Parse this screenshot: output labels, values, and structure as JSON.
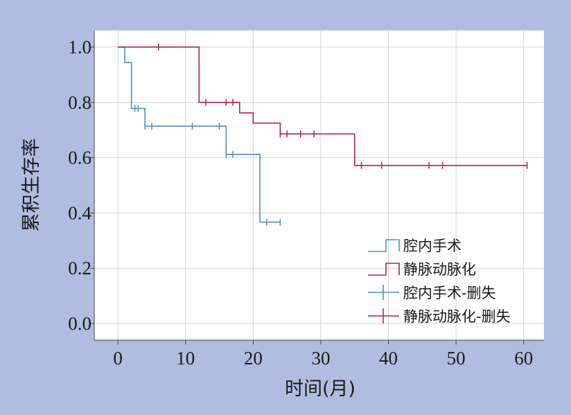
{
  "chart_data": {
    "type": "line",
    "subtype": "kaplan-meier",
    "xlabel": "时间(月)",
    "ylabel": "累积生存率",
    "xlim": [
      -3.5,
      63
    ],
    "ylim": [
      -0.06,
      1.06
    ],
    "xticks": [
      0,
      10,
      20,
      30,
      40,
      50,
      60
    ],
    "yticks": [
      0.0,
      0.2,
      0.4,
      0.6,
      0.8,
      1.0
    ],
    "ytick_labels": [
      "0.0",
      "0.2",
      "0.4",
      "0.6",
      "0.8",
      "1.0"
    ],
    "grid": true,
    "legend_position": "bottom-right",
    "legend": [
      "腔内手术",
      "静脉动脉化",
      "腔内手术-删失",
      "静脉动脉化-删失"
    ],
    "colors": {
      "series1": "#4f8fc0",
      "series2": "#b2204f",
      "background": "#b1bde0",
      "plot_bg": "#ffffff",
      "grid": "#d4d4d4"
    },
    "series": [
      {
        "name": "腔内手术",
        "censor_name": "腔内手术-删失",
        "color": "#4f8fc0",
        "steps": [
          [
            0,
            1.0
          ],
          [
            1,
            0.944
          ],
          [
            2,
            0.778
          ],
          [
            4,
            0.714
          ],
          [
            16,
            0.612
          ],
          [
            21,
            0.367
          ],
          [
            24,
            0.367
          ]
        ],
        "censored": [
          [
            2.5,
            0.778
          ],
          [
            3,
            0.778
          ],
          [
            4,
            0.714
          ],
          [
            5,
            0.714
          ],
          [
            11,
            0.714
          ],
          [
            15,
            0.714
          ],
          [
            16,
            0.612
          ],
          [
            17,
            0.612
          ],
          [
            22,
            0.367
          ],
          [
            24,
            0.367
          ]
        ]
      },
      {
        "name": "静脉动脉化",
        "censor_name": "静脉动脉化-删失",
        "color": "#b2204f",
        "steps": [
          [
            0,
            1.0
          ],
          [
            12,
            0.8
          ],
          [
            18,
            0.762
          ],
          [
            20,
            0.725
          ],
          [
            24,
            0.686
          ],
          [
            35,
            0.572
          ],
          [
            60.5,
            0.572
          ]
        ],
        "censored": [
          [
            6,
            1.0
          ],
          [
            13,
            0.8
          ],
          [
            16,
            0.8
          ],
          [
            17,
            0.8
          ],
          [
            24,
            0.686
          ],
          [
            25,
            0.686
          ],
          [
            27,
            0.686
          ],
          [
            29,
            0.686
          ],
          [
            36,
            0.572
          ],
          [
            39,
            0.572
          ],
          [
            46,
            0.572
          ],
          [
            48,
            0.572
          ],
          [
            60.5,
            0.572
          ]
        ]
      }
    ]
  }
}
